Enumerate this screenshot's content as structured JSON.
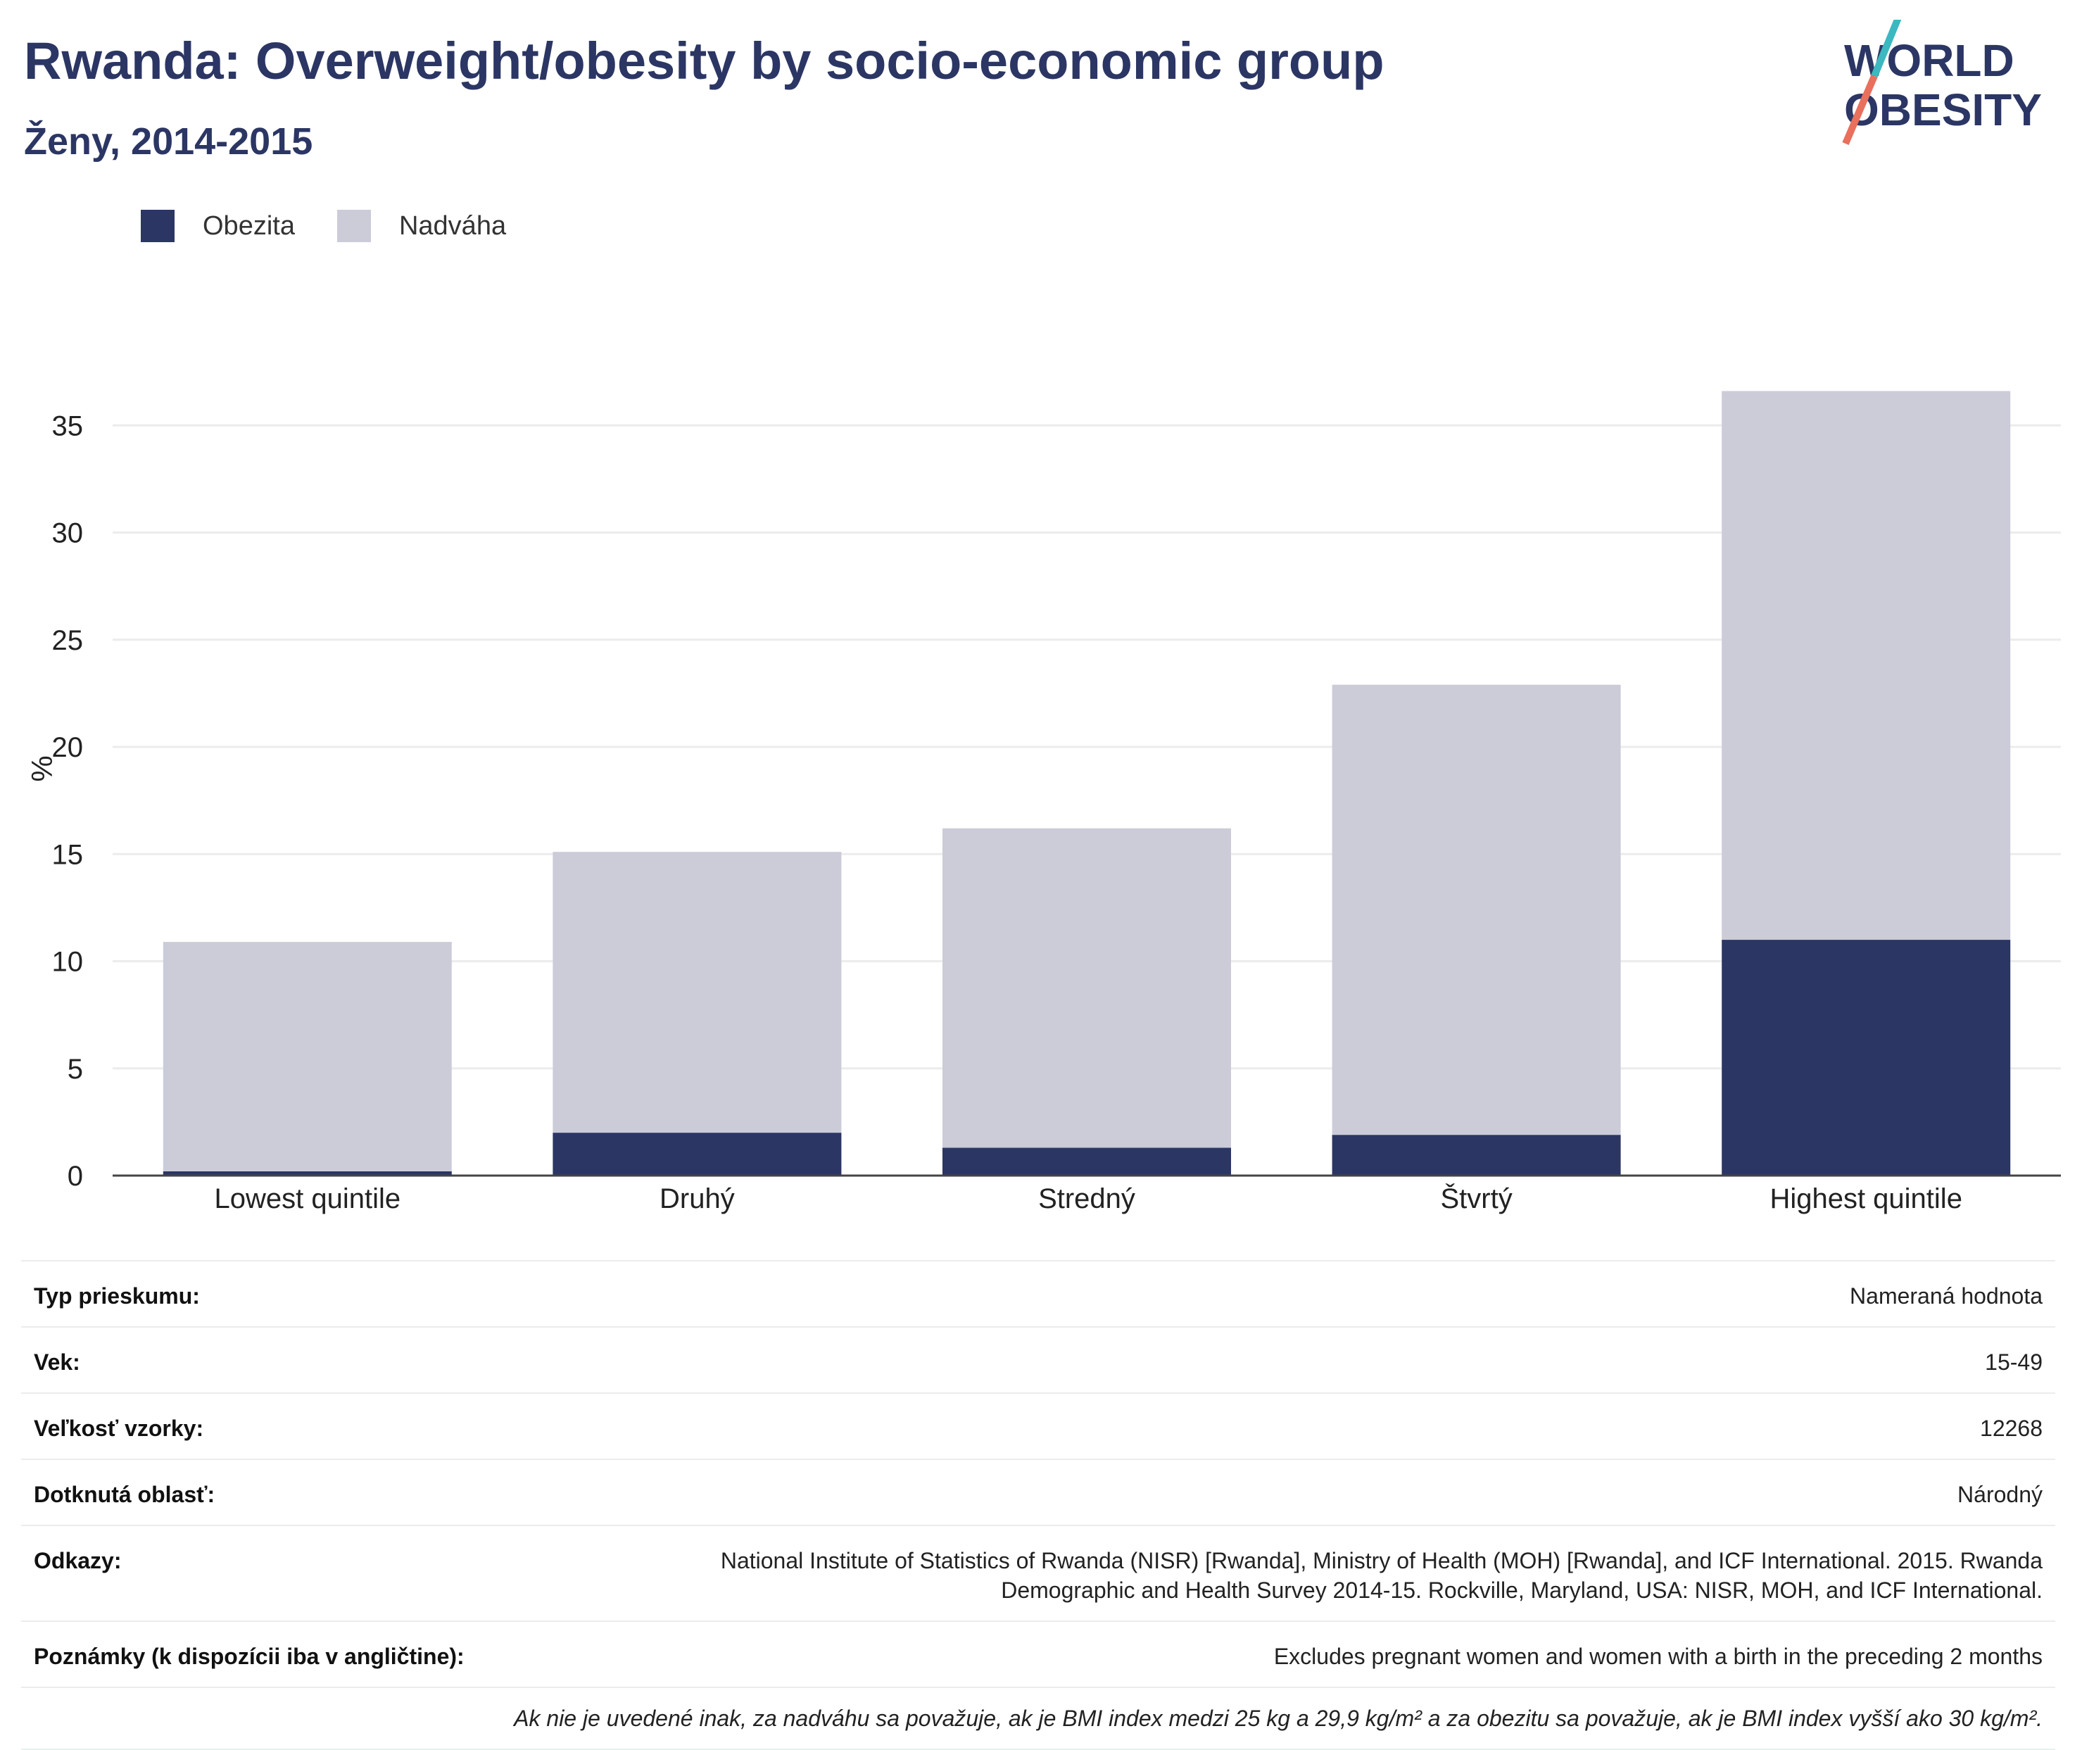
{
  "header": {
    "title": "Rwanda: Overweight/obesity by socio-economic group",
    "subtitle": "Ženy, 2014-2015"
  },
  "logo": {
    "line1": "WORLD",
    "line2": "OBESITY",
    "colors": {
      "text": "#2b3664",
      "slash_top": "#3cb8c0",
      "slash_bottom": "#e8705d"
    }
  },
  "colors": {
    "obesity": "#2b3664",
    "overweight": "#cbccd8",
    "grid": "#ececec",
    "axis": "#444444"
  },
  "chart_data": {
    "type": "bar",
    "stacked": true,
    "categories": [
      "Lowest quintile",
      "Druhý",
      "Stredný",
      "Štvrtý",
      "Highest quintile"
    ],
    "series": [
      {
        "name": "Obezita",
        "color": "#2b3664",
        "values": [
          0.2,
          2.0,
          1.3,
          1.9,
          11.0
        ]
      },
      {
        "name": "Nadváha",
        "color": "#cbccd8",
        "values": [
          10.7,
          13.1,
          14.9,
          21.0,
          25.6
        ]
      }
    ],
    "ylabel": "%",
    "ylim": [
      0,
      37
    ],
    "yticks": [
      0,
      5,
      10,
      15,
      20,
      25,
      30,
      35
    ],
    "grid": true,
    "legend_position": "top-left"
  },
  "info_rows": [
    {
      "label": "Typ prieskumu:",
      "value": "Nameraná hodnota"
    },
    {
      "label": "Vek:",
      "value": "15-49"
    },
    {
      "label": "Veľkosť vzorky:",
      "value": "12268"
    },
    {
      "label": "Dotknutá oblasť:",
      "value": "Národný"
    },
    {
      "label": "Odkazy:",
      "value_lines": [
        "National Institute of Statistics of Rwanda (NISR) [Rwanda], Ministry of Health (MOH) [Rwanda], and ICF International. 2015. Rwanda",
        "Demographic and Health Survey 2014-15. Rockville, Maryland, USA: NISR, MOH, and ICF International."
      ]
    },
    {
      "label": "Poznámky (k dispozícii iba v angličtine):",
      "value": "Excludes pregnant women and women with a birth in the preceding 2 months"
    }
  ],
  "footnote": "Ak nie je uvedené inak, za nadváhu sa považuje, ak je BMI index medzi 25 kg a 29,9 kg/m² a za obezitu sa považuje, ak je BMI index vyšší ako 30 kg/m²."
}
